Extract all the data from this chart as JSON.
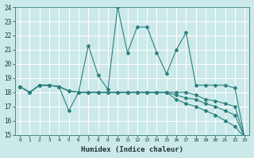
{
  "xlabel": "Humidex (Indice chaleur)",
  "background_color": "#cce9e9",
  "grid_color": "#ffffff",
  "line_color": "#2d7f7f",
  "xlim": [
    -0.5,
    23.5
  ],
  "ylim": [
    15,
    24
  ],
  "yticks": [
    15,
    16,
    17,
    18,
    19,
    20,
    21,
    22,
    23,
    24
  ],
  "xticks": [
    0,
    1,
    2,
    3,
    4,
    5,
    6,
    7,
    8,
    9,
    10,
    11,
    12,
    13,
    14,
    15,
    16,
    17,
    18,
    19,
    20,
    21,
    22,
    23
  ],
  "curve1_x": [
    0,
    1,
    2,
    3,
    4,
    5,
    6,
    7,
    8,
    9,
    10,
    11,
    12,
    13,
    14,
    15,
    16,
    17,
    18,
    19,
    20,
    21,
    22,
    23
  ],
  "curve1_y": [
    18.4,
    18.0,
    18.5,
    18.5,
    18.4,
    16.7,
    18.0,
    21.3,
    19.2,
    18.2,
    24.0,
    20.8,
    22.6,
    22.6,
    20.8,
    19.3,
    21.0,
    22.2,
    18.5,
    18.5,
    18.5,
    18.5,
    18.3,
    14.8
  ],
  "curve2_x": [
    0,
    1,
    2,
    3,
    4,
    5,
    6,
    7,
    8,
    9,
    10,
    11,
    12,
    13,
    14,
    15,
    16,
    17,
    18,
    19,
    20,
    21,
    22,
    23
  ],
  "curve2_y": [
    18.4,
    18.0,
    18.5,
    18.5,
    18.4,
    18.1,
    18.0,
    18.0,
    18.0,
    18.0,
    18.0,
    18.0,
    18.0,
    18.0,
    18.0,
    18.0,
    18.0,
    18.0,
    17.8,
    17.5,
    17.4,
    17.2,
    17.0,
    14.8
  ],
  "curve3_x": [
    0,
    1,
    2,
    3,
    4,
    5,
    6,
    7,
    8,
    9,
    10,
    11,
    12,
    13,
    14,
    15,
    16,
    17,
    18,
    19,
    20,
    21,
    22,
    23
  ],
  "curve3_y": [
    18.4,
    18.0,
    18.5,
    18.5,
    18.4,
    18.1,
    18.0,
    18.0,
    18.0,
    18.0,
    18.0,
    18.0,
    18.0,
    18.0,
    18.0,
    18.0,
    17.8,
    17.6,
    17.5,
    17.2,
    17.0,
    16.7,
    16.4,
    14.8
  ],
  "curve4_x": [
    0,
    1,
    2,
    3,
    4,
    5,
    6,
    7,
    8,
    9,
    10,
    11,
    12,
    13,
    14,
    15,
    16,
    17,
    18,
    19,
    20,
    21,
    22,
    23
  ],
  "curve4_y": [
    18.4,
    18.0,
    18.5,
    18.5,
    18.4,
    18.1,
    18.0,
    18.0,
    18.0,
    18.0,
    18.0,
    18.0,
    18.0,
    18.0,
    18.0,
    18.0,
    17.5,
    17.2,
    17.0,
    16.7,
    16.4,
    16.0,
    15.6,
    14.8
  ]
}
